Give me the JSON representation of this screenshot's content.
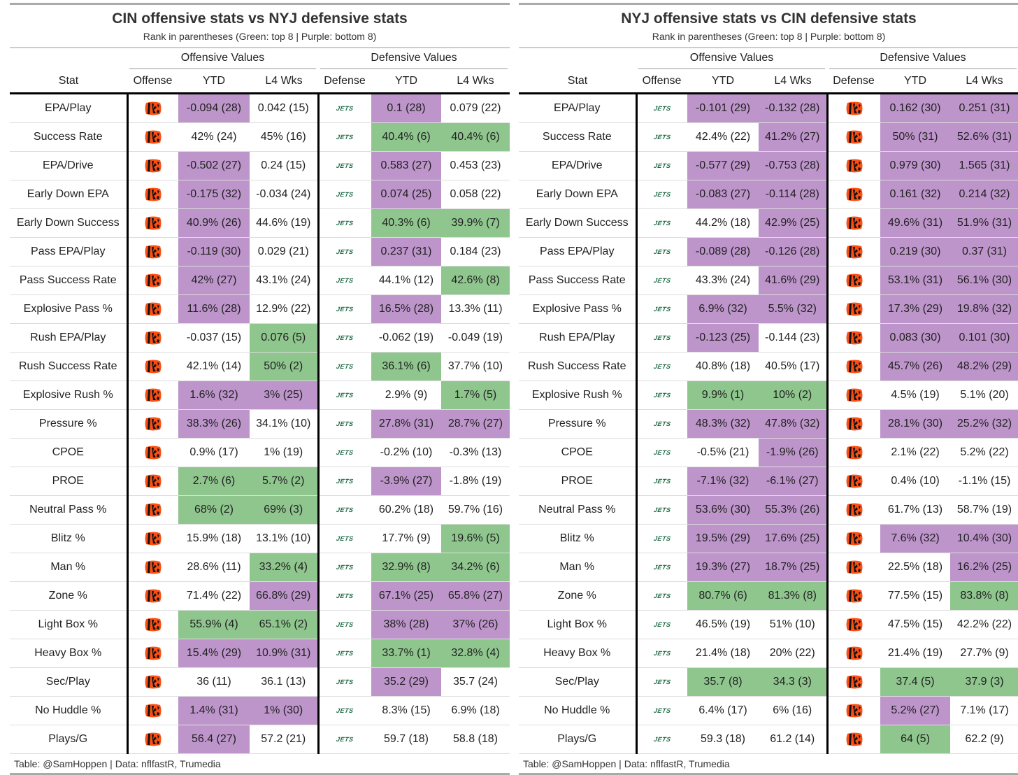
{
  "colors": {
    "top8": "#8fc68e",
    "bottom8": "#bd95cb",
    "bengals_orange": "#fb4f14",
    "jets_green": "#1e6b45"
  },
  "logos": {
    "cin": "bengals-logo",
    "nyj_text": "JETS"
  },
  "tables": [
    {
      "title": "CIN offensive stats vs NYJ defensive stats",
      "subtitle": "Rank in parentheses (Green: top 8 | Purple: bottom 8)",
      "spanners": {
        "offense": "Offensive Values",
        "defense": "Defensive Values"
      },
      "columns": {
        "stat": "Stat",
        "offense": "Offense",
        "off_ytd": "YTD",
        "off_l4": "L4 Wks",
        "defense": "Defense",
        "def_ytd": "YTD",
        "def_l4": "L4 Wks"
      },
      "offense_team": "CIN",
      "defense_team": "NYJ",
      "rows": [
        {
          "stat": "EPA/Play",
          "off_ytd": "-0.094 (28)",
          "off_l4": "0.042 (15)",
          "def_ytd": "0.1 (28)",
          "def_l4": "0.079 (22)"
        },
        {
          "stat": "Success Rate",
          "off_ytd": "42% (24)",
          "off_l4": "45% (16)",
          "def_ytd": "40.4% (6)",
          "def_l4": "40.4% (6)"
        },
        {
          "stat": "EPA/Drive",
          "off_ytd": "-0.502 (27)",
          "off_l4": "0.24 (15)",
          "def_ytd": "0.583 (27)",
          "def_l4": "0.453 (23)"
        },
        {
          "stat": "Early Down EPA",
          "off_ytd": "-0.175 (32)",
          "off_l4": "-0.034 (24)",
          "def_ytd": "0.074 (25)",
          "def_l4": "0.058 (22)"
        },
        {
          "stat": "Early Down Success",
          "off_ytd": "40.9% (26)",
          "off_l4": "44.6% (19)",
          "def_ytd": "40.3% (6)",
          "def_l4": "39.9% (7)"
        },
        {
          "stat": "Pass EPA/Play",
          "off_ytd": "-0.119 (30)",
          "off_l4": "0.029 (21)",
          "def_ytd": "0.237 (31)",
          "def_l4": "0.184 (23)"
        },
        {
          "stat": "Pass Success Rate",
          "off_ytd": "42% (27)",
          "off_l4": "43.1% (24)",
          "def_ytd": "44.1% (12)",
          "def_l4": "42.6% (8)"
        },
        {
          "stat": "Explosive Pass %",
          "off_ytd": "11.6% (28)",
          "off_l4": "12.9% (22)",
          "def_ytd": "16.5% (28)",
          "def_l4": "13.3% (11)"
        },
        {
          "stat": "Rush EPA/Play",
          "off_ytd": "-0.037 (15)",
          "off_l4": "0.076 (5)",
          "def_ytd": "-0.062 (19)",
          "def_l4": "-0.049 (19)"
        },
        {
          "stat": "Rush Success Rate",
          "off_ytd": "42.1% (14)",
          "off_l4": "50% (2)",
          "def_ytd": "36.1% (6)",
          "def_l4": "37.7% (10)"
        },
        {
          "stat": "Explosive Rush %",
          "off_ytd": "1.6% (32)",
          "off_l4": "3% (25)",
          "def_ytd": "2.9% (9)",
          "def_l4": "1.7% (5)"
        },
        {
          "stat": "Pressure %",
          "off_ytd": "38.3% (26)",
          "off_l4": "34.1% (10)",
          "def_ytd": "27.8% (31)",
          "def_l4": "28.7% (27)"
        },
        {
          "stat": "CPOE",
          "off_ytd": "0.9% (17)",
          "off_l4": "1% (19)",
          "def_ytd": "-0.2% (10)",
          "def_l4": "-0.3% (13)"
        },
        {
          "stat": "PROE",
          "off_ytd": "2.7% (6)",
          "off_l4": "5.7% (2)",
          "def_ytd": "-3.9% (27)",
          "def_l4": "-1.8% (19)"
        },
        {
          "stat": "Neutral Pass %",
          "off_ytd": "68% (2)",
          "off_l4": "69% (3)",
          "def_ytd": "60.2% (18)",
          "def_l4": "59.7% (16)"
        },
        {
          "stat": "Blitz %",
          "off_ytd": "15.9% (18)",
          "off_l4": "13.1% (10)",
          "def_ytd": "17.7% (9)",
          "def_l4": "19.6% (5)"
        },
        {
          "stat": "Man %",
          "off_ytd": "28.6% (11)",
          "off_l4": "33.2% (4)",
          "def_ytd": "32.9% (8)",
          "def_l4": "34.2% (6)"
        },
        {
          "stat": "Zone %",
          "off_ytd": "71.4% (22)",
          "off_l4": "66.8% (29)",
          "def_ytd": "67.1% (25)",
          "def_l4": "65.8% (27)"
        },
        {
          "stat": "Light Box %",
          "off_ytd": "55.9% (4)",
          "off_l4": "65.1% (2)",
          "def_ytd": "38% (28)",
          "def_l4": "37% (26)"
        },
        {
          "stat": "Heavy Box %",
          "off_ytd": "15.4% (29)",
          "off_l4": "10.9% (31)",
          "def_ytd": "33.7% (1)",
          "def_l4": "32.8% (4)"
        },
        {
          "stat": "Sec/Play",
          "off_ytd": "36 (11)",
          "off_l4": "36.1 (13)",
          "def_ytd": "35.2 (29)",
          "def_l4": "35.7 (24)"
        },
        {
          "stat": "No Huddle %",
          "off_ytd": "1.4% (31)",
          "off_l4": "1% (30)",
          "def_ytd": "8.3% (15)",
          "def_l4": "6.9% (18)"
        },
        {
          "stat": "Plays/G",
          "off_ytd": "56.4 (27)",
          "off_l4": "57.2 (21)",
          "def_ytd": "59.7 (18)",
          "def_l4": "58.8 (18)"
        }
      ],
      "footer": "Table: @SamHoppen | Data: nflfastR, Trumedia"
    },
    {
      "title": "NYJ offensive stats vs CIN defensive stats",
      "subtitle": "Rank in parentheses (Green: top 8 | Purple: bottom 8)",
      "spanners": {
        "offense": "Offensive Values",
        "defense": "Defensive Values"
      },
      "columns": {
        "stat": "Stat",
        "offense": "Offense",
        "off_ytd": "YTD",
        "off_l4": "L4 Wks",
        "defense": "Defense",
        "def_ytd": "YTD",
        "def_l4": "L4 Wks"
      },
      "offense_team": "NYJ",
      "defense_team": "CIN",
      "rows": [
        {
          "stat": "EPA/Play",
          "off_ytd": "-0.101 (29)",
          "off_l4": "-0.132 (28)",
          "def_ytd": "0.162 (30)",
          "def_l4": "0.251 (31)"
        },
        {
          "stat": "Success Rate",
          "off_ytd": "42.4% (22)",
          "off_l4": "41.2% (27)",
          "def_ytd": "50% (31)",
          "def_l4": "52.6% (31)"
        },
        {
          "stat": "EPA/Drive",
          "off_ytd": "-0.577 (29)",
          "off_l4": "-0.753 (28)",
          "def_ytd": "0.979 (30)",
          "def_l4": "1.565 (31)"
        },
        {
          "stat": "Early Down EPA",
          "off_ytd": "-0.083 (27)",
          "off_l4": "-0.114 (28)",
          "def_ytd": "0.161 (32)",
          "def_l4": "0.214 (32)"
        },
        {
          "stat": "Early Down Success",
          "off_ytd": "44.2% (18)",
          "off_l4": "42.9% (25)",
          "def_ytd": "49.6% (31)",
          "def_l4": "51.9% (31)"
        },
        {
          "stat": "Pass EPA/Play",
          "off_ytd": "-0.089 (28)",
          "off_l4": "-0.126 (28)",
          "def_ytd": "0.219 (30)",
          "def_l4": "0.37 (31)"
        },
        {
          "stat": "Pass Success Rate",
          "off_ytd": "43.3% (24)",
          "off_l4": "41.6% (29)",
          "def_ytd": "53.1% (31)",
          "def_l4": "56.1% (30)"
        },
        {
          "stat": "Explosive Pass %",
          "off_ytd": "6.9% (32)",
          "off_l4": "5.5% (32)",
          "def_ytd": "17.3% (29)",
          "def_l4": "19.8% (32)"
        },
        {
          "stat": "Rush EPA/Play",
          "off_ytd": "-0.123 (25)",
          "off_l4": "-0.144 (23)",
          "def_ytd": "0.083 (30)",
          "def_l4": "0.101 (30)"
        },
        {
          "stat": "Rush Success Rate",
          "off_ytd": "40.8% (18)",
          "off_l4": "40.5% (17)",
          "def_ytd": "45.7% (26)",
          "def_l4": "48.2% (29)"
        },
        {
          "stat": "Explosive Rush %",
          "off_ytd": "9.9% (1)",
          "off_l4": "10% (2)",
          "def_ytd": "4.5% (19)",
          "def_l4": "5.1% (20)"
        },
        {
          "stat": "Pressure %",
          "off_ytd": "48.3% (32)",
          "off_l4": "47.8% (32)",
          "def_ytd": "28.1% (30)",
          "def_l4": "25.2% (32)"
        },
        {
          "stat": "CPOE",
          "off_ytd": "-0.5% (21)",
          "off_l4": "-1.9% (26)",
          "def_ytd": "2.1% (22)",
          "def_l4": "5.2% (22)"
        },
        {
          "stat": "PROE",
          "off_ytd": "-7.1% (32)",
          "off_l4": "-6.1% (27)",
          "def_ytd": "0.4% (10)",
          "def_l4": "-1.1% (15)"
        },
        {
          "stat": "Neutral Pass %",
          "off_ytd": "53.6% (30)",
          "off_l4": "55.3% (26)",
          "def_ytd": "61.7% (13)",
          "def_l4": "58.7% (19)"
        },
        {
          "stat": "Blitz %",
          "off_ytd": "19.5% (29)",
          "off_l4": "17.6% (25)",
          "def_ytd": "7.6% (32)",
          "def_l4": "10.4% (30)"
        },
        {
          "stat": "Man %",
          "off_ytd": "19.3% (27)",
          "off_l4": "18.7% (25)",
          "def_ytd": "22.5% (18)",
          "def_l4": "16.2% (25)"
        },
        {
          "stat": "Zone %",
          "off_ytd": "80.7% (6)",
          "off_l4": "81.3% (8)",
          "def_ytd": "77.5% (15)",
          "def_l4": "83.8% (8)"
        },
        {
          "stat": "Light Box %",
          "off_ytd": "46.5% (19)",
          "off_l4": "51% (10)",
          "def_ytd": "47.5% (15)",
          "def_l4": "42.2% (22)"
        },
        {
          "stat": "Heavy Box %",
          "off_ytd": "21.4% (18)",
          "off_l4": "20% (22)",
          "def_ytd": "21.4% (19)",
          "def_l4": "27.7% (9)"
        },
        {
          "stat": "Sec/Play",
          "off_ytd": "35.7 (8)",
          "off_l4": "34.3 (3)",
          "def_ytd": "37.4 (5)",
          "def_l4": "37.9 (3)"
        },
        {
          "stat": "No Huddle %",
          "off_ytd": "6.4% (17)",
          "off_l4": "6% (16)",
          "def_ytd": "5.2% (27)",
          "def_l4": "7.1% (17)"
        },
        {
          "stat": "Plays/G",
          "off_ytd": "59.3 (18)",
          "off_l4": "61.2 (14)",
          "def_ytd": "64 (5)",
          "def_l4": "62.2 (9)"
        }
      ],
      "footer": "Table: @SamHoppen | Data: nflfastR, Trumedia"
    }
  ]
}
